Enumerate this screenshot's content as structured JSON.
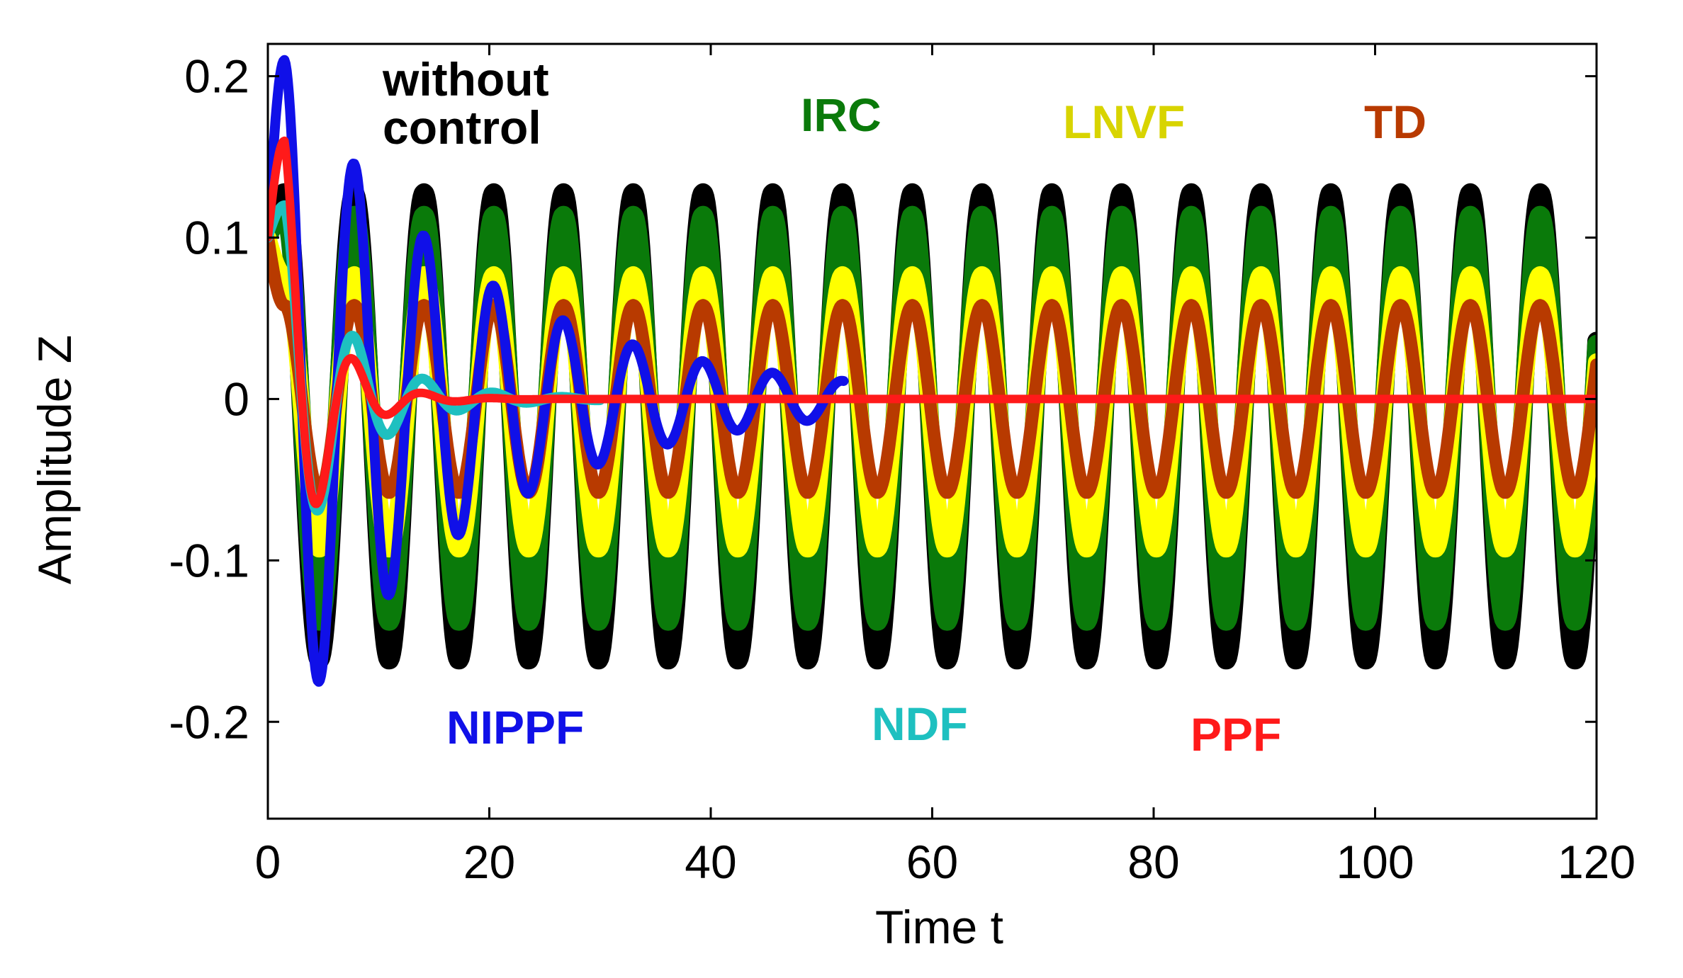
{
  "chart_data": {
    "type": "line",
    "xlabel": "Time t",
    "ylabel": "Amplitude Z",
    "xlim": [
      0,
      120
    ],
    "ylim": [
      -0.26,
      0.22
    ],
    "xticks": [
      "0",
      "20",
      "40",
      "60",
      "80",
      "100",
      "120"
    ],
    "yticks": [
      "-0.2",
      "-0.1",
      "0",
      "0.1",
      "0.2"
    ],
    "xtick_values": [
      0,
      20,
      40,
      60,
      80,
      100,
      120
    ],
    "ytick_values": [
      -0.2,
      -0.1,
      0,
      0.1,
      0.2
    ],
    "grid": false,
    "series": [
      {
        "name": "without control",
        "color": "#000000",
        "label_lines": [
          "without",
          "control"
        ],
        "kind": "steady",
        "x0": 0,
        "y0": 0.1,
        "mean": -0.017,
        "amp": 0.145,
        "period": 6.3,
        "peak_t": 1.5
      },
      {
        "name": "IRC",
        "color": "#0a7a0a",
        "label_lines": [
          "IRC"
        ],
        "kind": "steady",
        "x0": 0,
        "y0": 0.1,
        "mean": -0.012,
        "amp": 0.126,
        "period": 6.3,
        "peak_t": 1.5
      },
      {
        "name": "LNVF",
        "color": "#ffff00",
        "label_lines": [
          "LNVF"
        ],
        "kind": "steady",
        "x0": 0,
        "y0": 0.1,
        "mean": -0.008,
        "amp": 0.085,
        "period": 6.3,
        "peak_t": 1.5
      },
      {
        "name": "TD",
        "color": "#b83a00",
        "label_lines": [
          "TD"
        ],
        "kind": "steady",
        "x0": 0,
        "y0": 0.1,
        "mean": 0.0,
        "amp": 0.058,
        "period": 6.3,
        "peak_t": 1.5
      },
      {
        "name": "NIPPF",
        "color": "#1010e8",
        "label_lines": [
          "NIPPF"
        ],
        "kind": "decay",
        "x0": 0,
        "y0": 0.1,
        "peak_y": 0.21,
        "peak_t": 1.5,
        "period": 6.3,
        "decay": 0.058,
        "end_t": 52
      },
      {
        "name": "NDF",
        "color": "#1ec0c0",
        "label_lines": [
          "NDF"
        ],
        "kind": "decay",
        "x0": 0,
        "y0": 0.1,
        "peak_y": 0.12,
        "peak_t": 1.5,
        "period": 6.3,
        "decay": 0.18,
        "end_t": 30
      },
      {
        "name": "PPF",
        "color": "#ff1a1a",
        "label_lines": [
          "PPF"
        ],
        "kind": "decay",
        "x0": 0,
        "y0": 0.1,
        "peak_y": 0.16,
        "peak_t": 1.5,
        "period": 6.3,
        "decay": 0.3,
        "end_t": 120
      }
    ]
  }
}
